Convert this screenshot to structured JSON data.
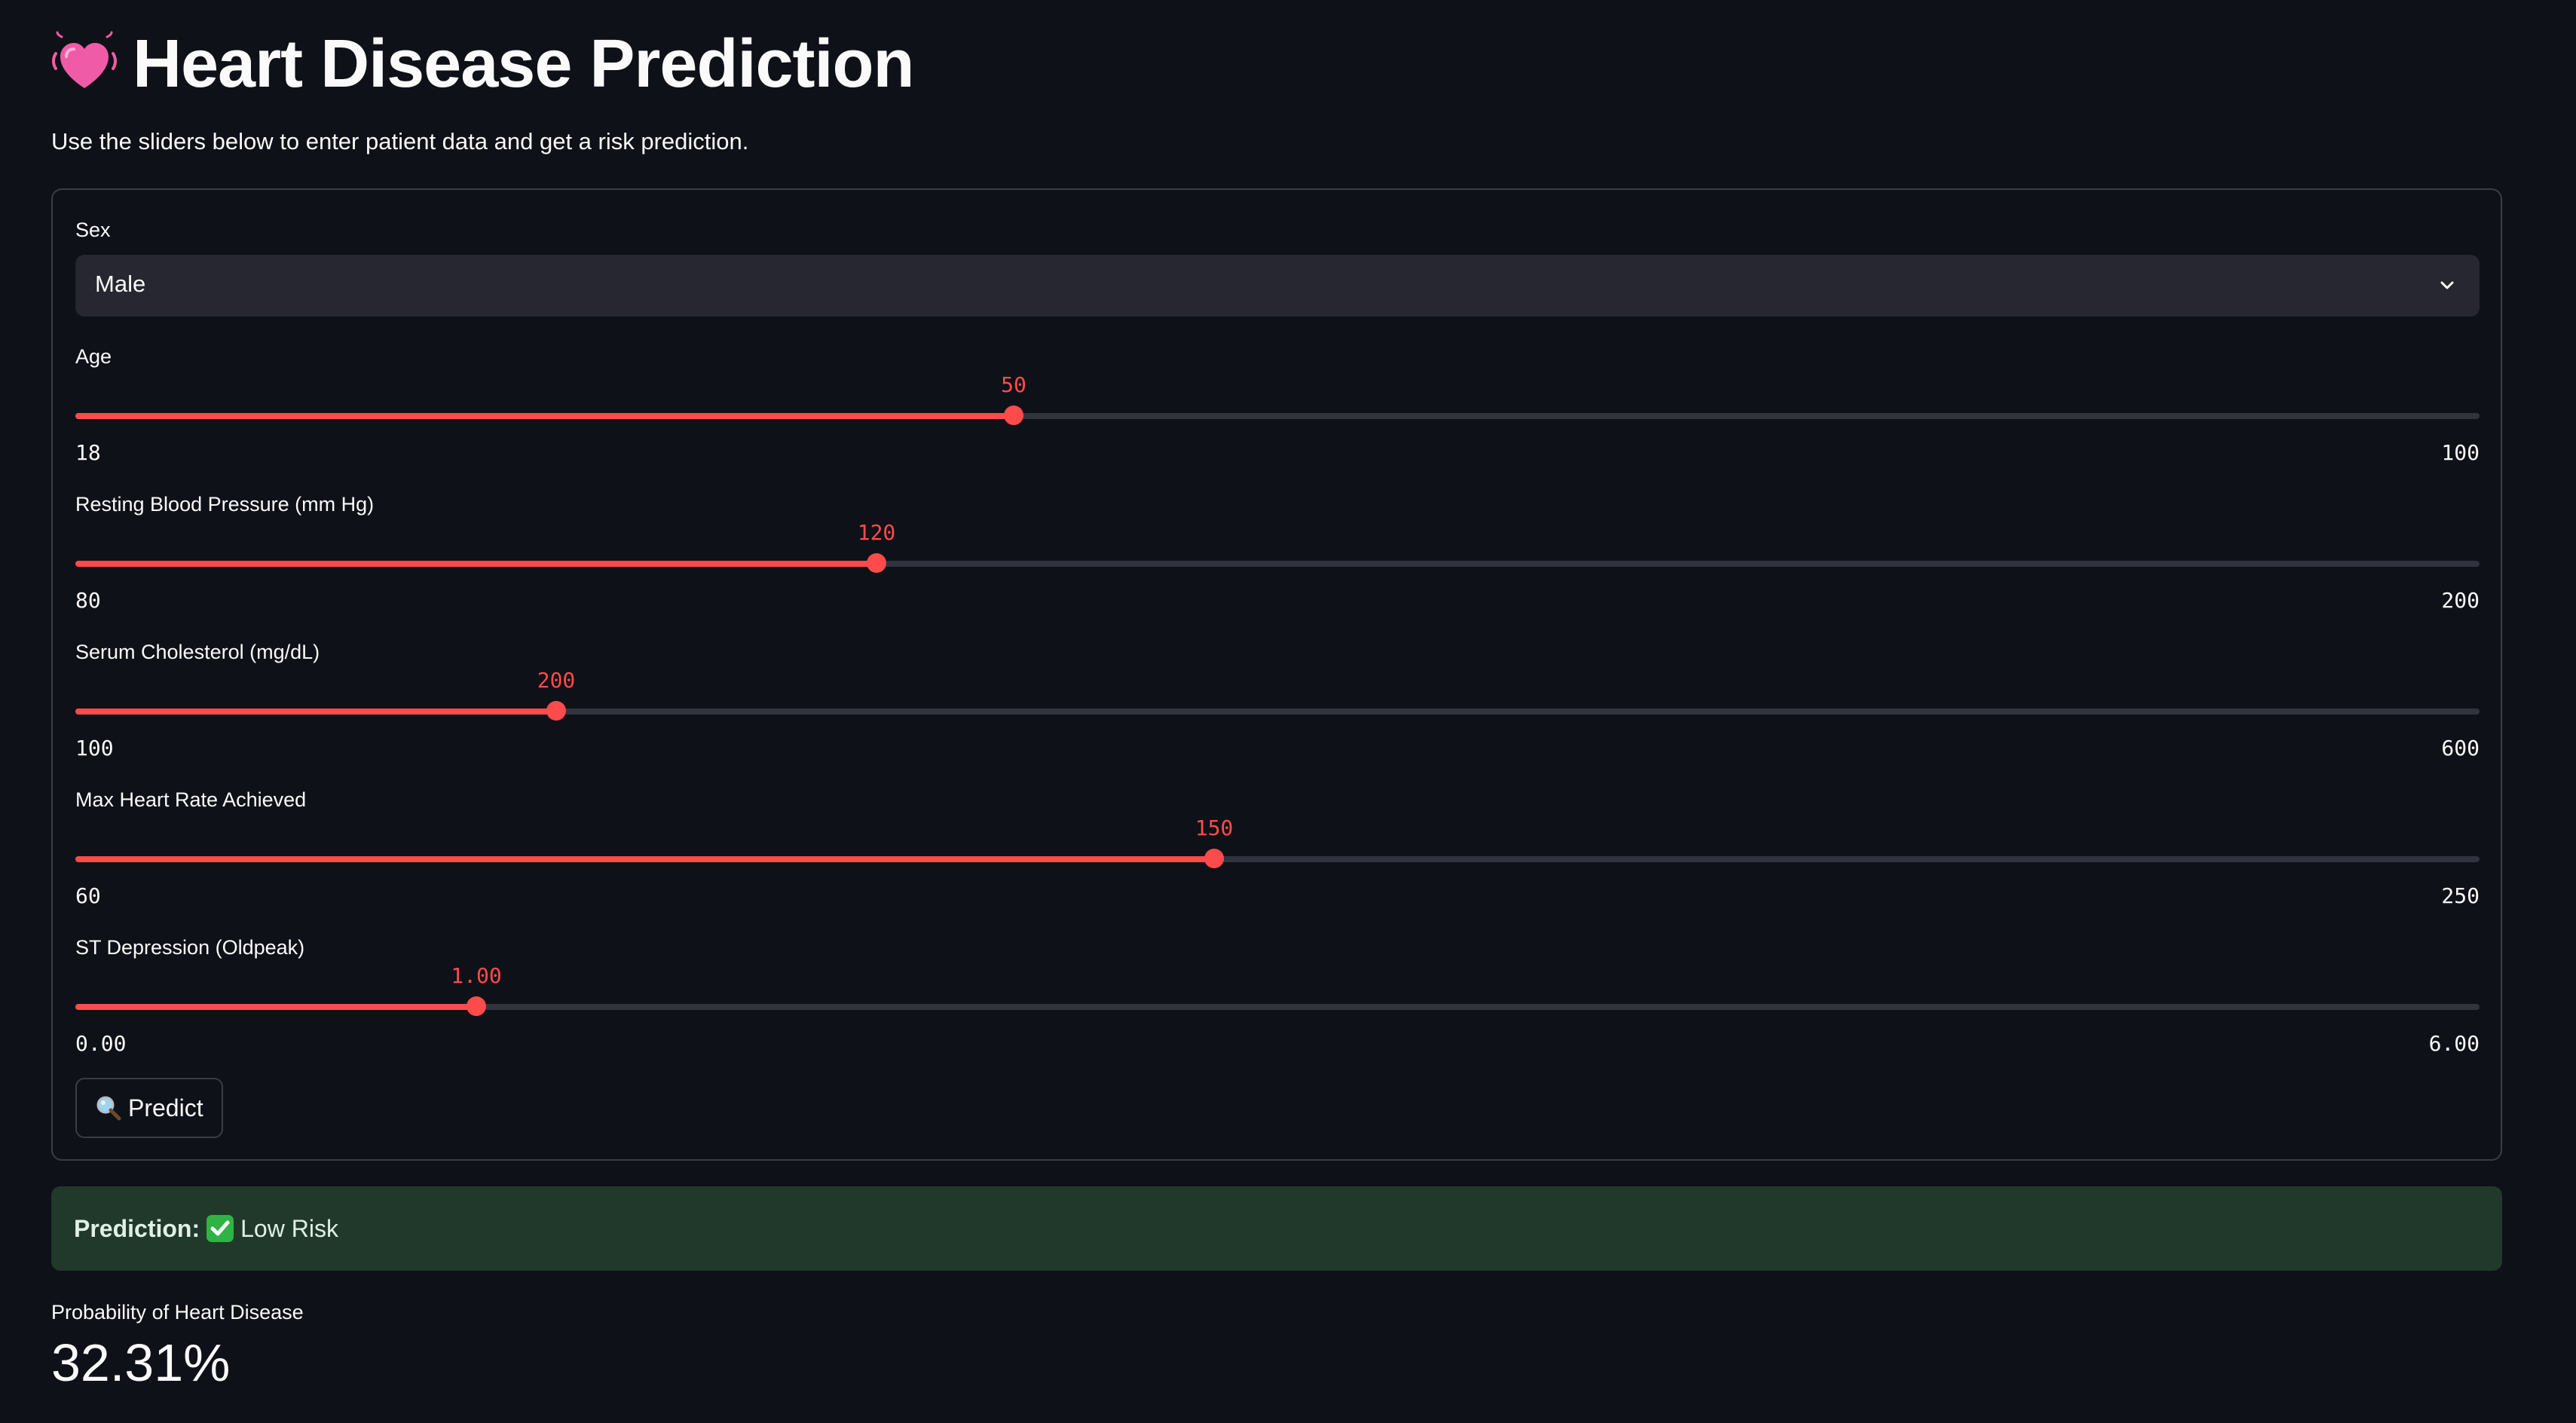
{
  "header": {
    "title": "Heart Disease Prediction",
    "title_icon": "beating-heart-icon",
    "subtitle": "Use the sliders below to enter patient data and get a risk prediction."
  },
  "form": {
    "sex": {
      "label": "Sex",
      "value": "Male",
      "icon": "chevron-down-icon"
    },
    "sliders": [
      {
        "key": "age",
        "label": "Age",
        "value": "50",
        "min": "18",
        "max": "100"
      },
      {
        "key": "resting-bp",
        "label": "Resting Blood Pressure (mm Hg)",
        "value": "120",
        "min": "80",
        "max": "200"
      },
      {
        "key": "cholesterol",
        "label": "Serum Cholesterol (mg/dL)",
        "value": "200",
        "min": "100",
        "max": "600"
      },
      {
        "key": "max-heart-rate",
        "label": "Max Heart Rate Achieved",
        "value": "150",
        "min": "60",
        "max": "250"
      },
      {
        "key": "oldpeak",
        "label": "ST Depression (Oldpeak)",
        "value": "1.00",
        "min": "0.00",
        "max": "6.00"
      }
    ],
    "predict_button": {
      "label": "Predict",
      "icon": "magnifier-icon"
    }
  },
  "result": {
    "prediction_label": "Prediction:",
    "prediction_value": "Low Risk",
    "prediction_icon": "check-mark-icon",
    "probability_label": "Probability of Heart Disease",
    "probability_value": "32.31%"
  },
  "colors": {
    "background": "#0e1117",
    "accent": "#ff4b4b",
    "select_bg": "#262730",
    "track": "#31333f",
    "success_bg": "#21392a",
    "check": "#2fb344"
  }
}
